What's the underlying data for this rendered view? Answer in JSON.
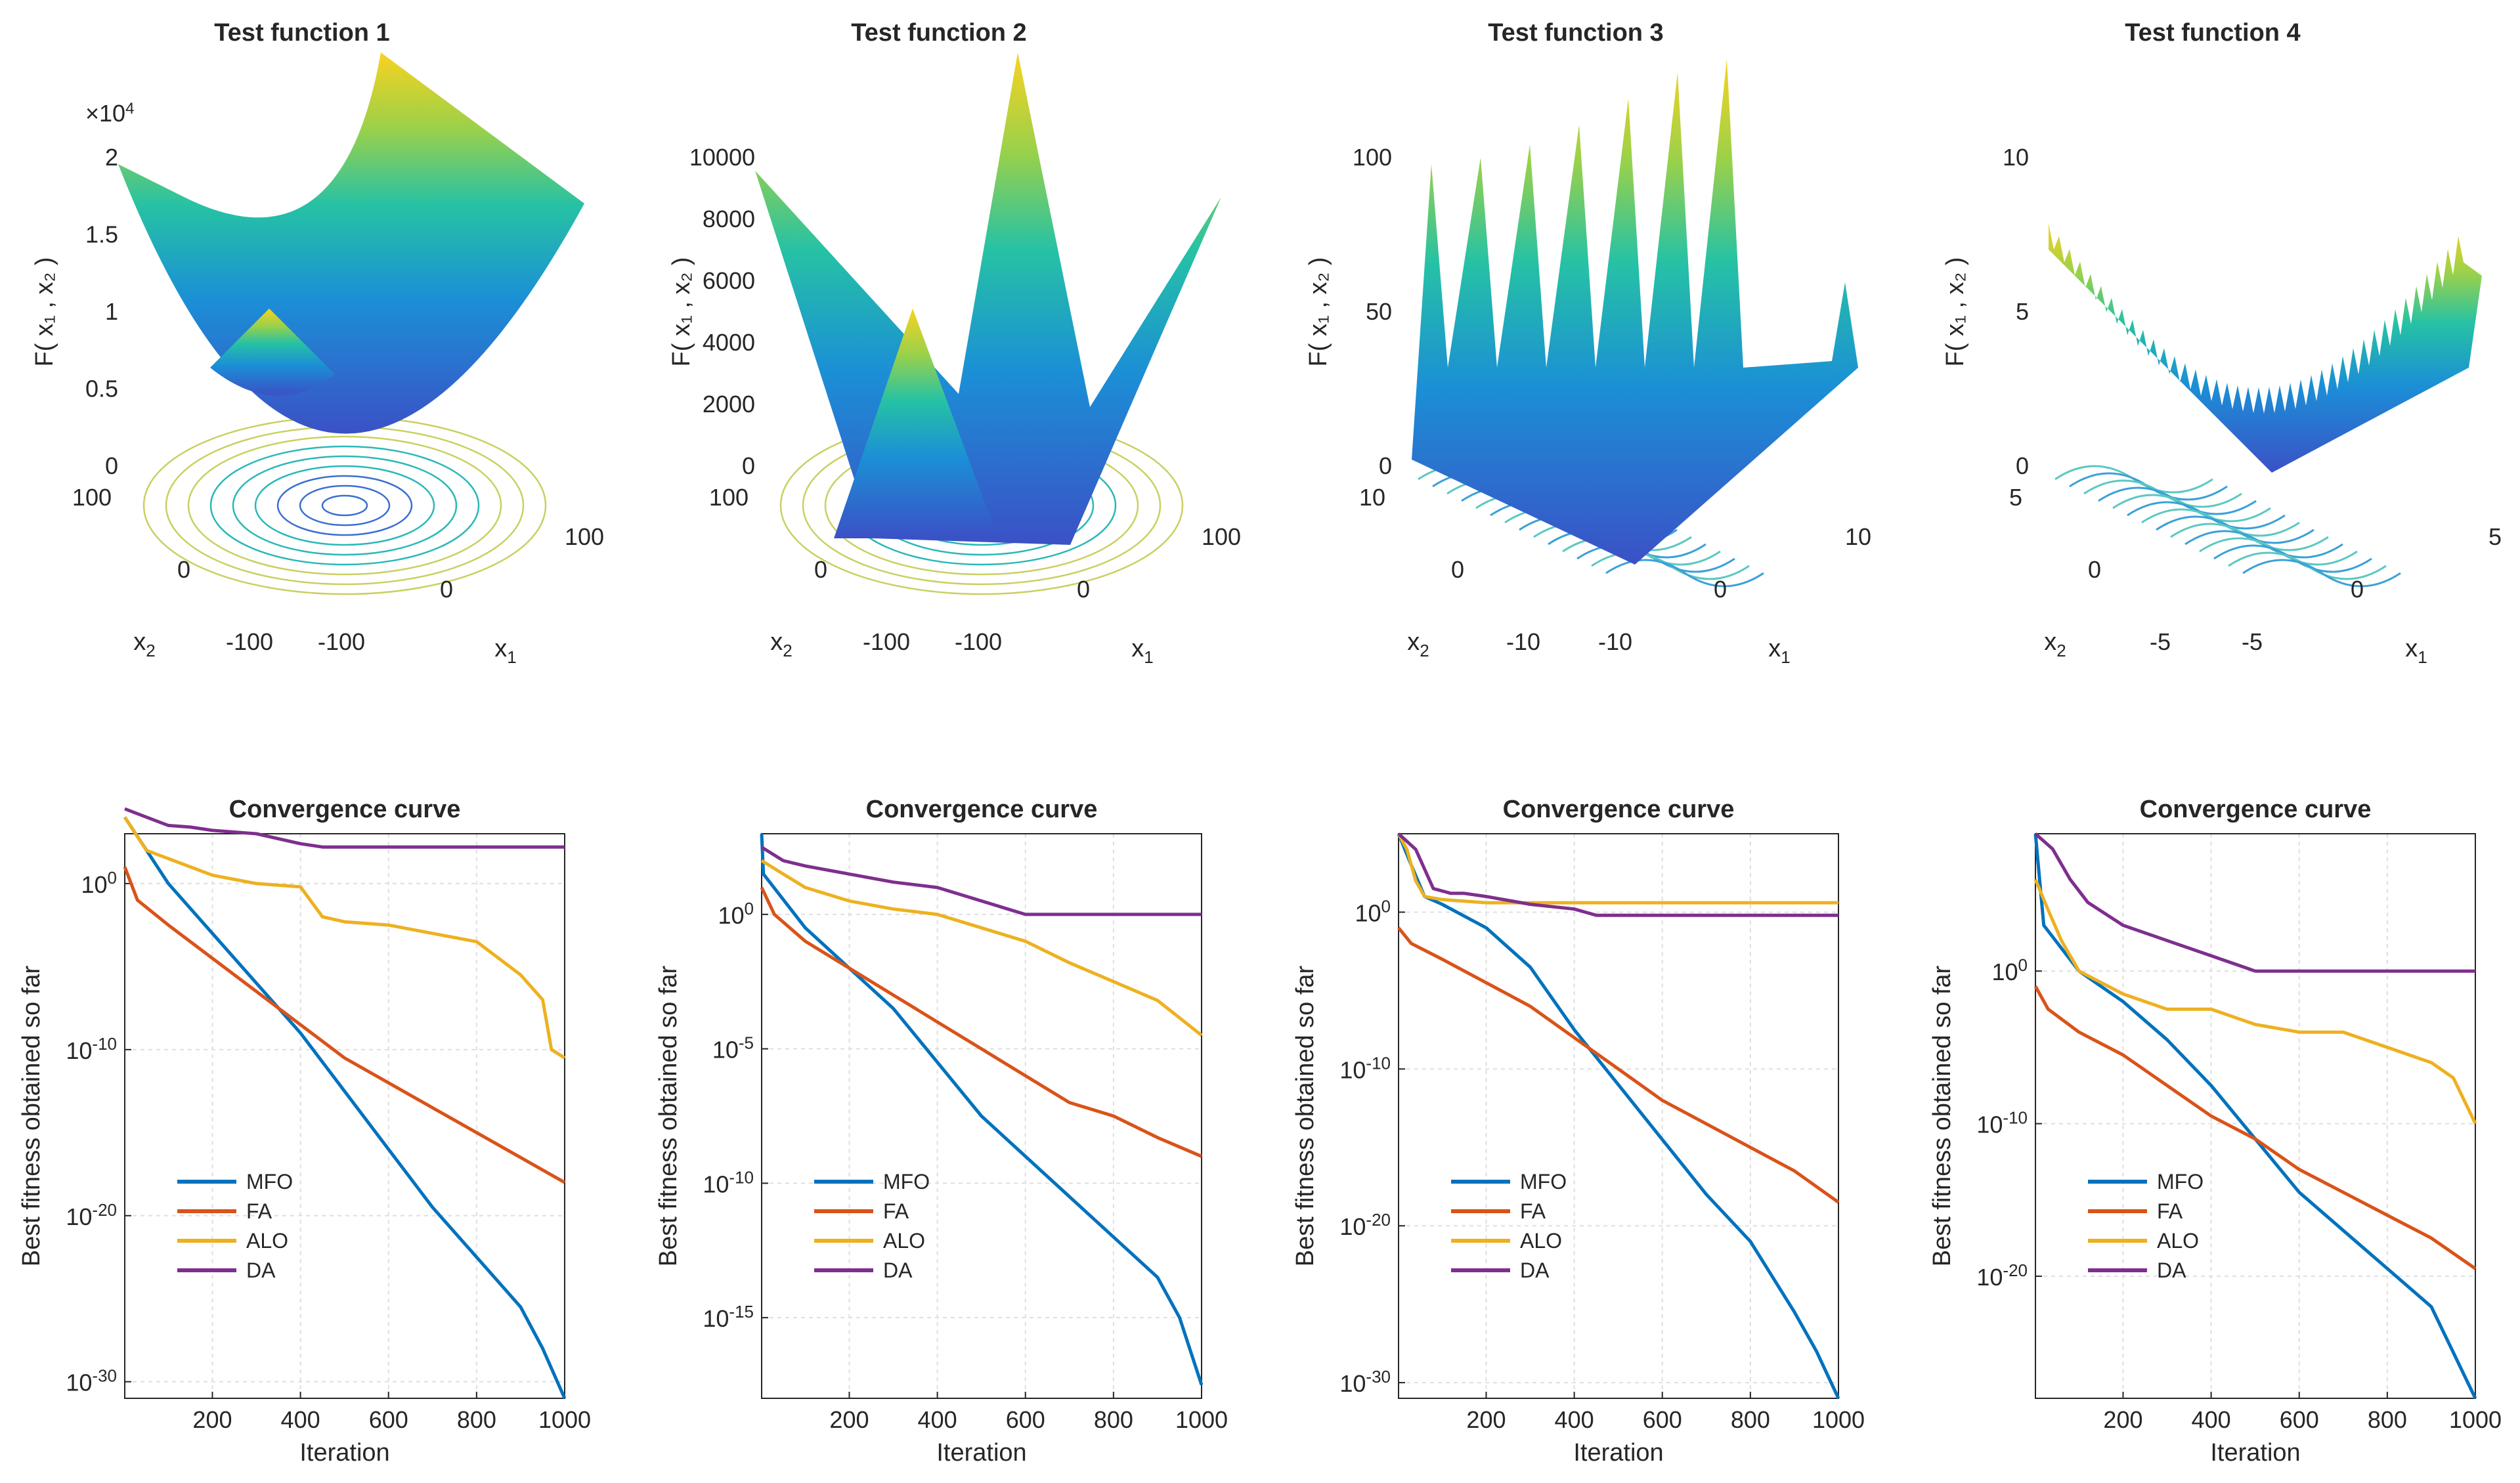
{
  "colors": {
    "mfo": "#0072BD",
    "fa": "#D95319",
    "alo": "#EDB120",
    "da": "#7E2F8E"
  },
  "surfaces": [
    {
      "title": "Test function 1",
      "zlabel": "F( x 1 , x 2 )",
      "xlabel": "x 1",
      "ylabel": "x 2",
      "zticks": [
        "0",
        "0.5",
        "1",
        "1.5",
        "2"
      ],
      "zexp": "×10 4",
      "x1ticks": [
        "-100",
        "0",
        "100"
      ],
      "x2ticks": [
        "-100",
        "0",
        "100"
      ],
      "shape": "bowl"
    },
    {
      "title": "Test function 2",
      "zlabel": "F( x 1 , x 2 )",
      "xlabel": "x 1",
      "ylabel": "x 2",
      "zticks": [
        "0",
        "2000",
        "4000",
        "6000",
        "8000",
        "10000"
      ],
      "zexp": "",
      "x1ticks": [
        "-100",
        "0",
        "100"
      ],
      "x2ticks": [
        "-100",
        "0",
        "100"
      ],
      "shape": "pyramid"
    },
    {
      "title": "Test function 3",
      "zlabel": "F( x 1 , x 2 )",
      "xlabel": "x 1",
      "ylabel": "x 2",
      "zticks": [
        "0",
        "50",
        "100"
      ],
      "zexp": "",
      "x1ticks": [
        "-10",
        "0",
        "10"
      ],
      "x2ticks": [
        "-10",
        "0",
        "10"
      ],
      "shape": "rastrigin"
    },
    {
      "title": "Test function 4",
      "zlabel": "F( x 1 , x 2 )",
      "xlabel": "x 1",
      "ylabel": "x 2",
      "zticks": [
        "0",
        "5",
        "10"
      ],
      "zexp": "",
      "x1ticks": [
        "-5",
        "0",
        "5"
      ],
      "x2ticks": [
        "-5",
        "0",
        "5"
      ],
      "shape": "spiky"
    }
  ],
  "chart_data": [
    {
      "type": "line",
      "title": "Convergence curve",
      "xlabel": "Iteration",
      "ylabel": "Best fitness obtained so far",
      "xlim": [
        1,
        1000
      ],
      "xticks": [
        200,
        400,
        600,
        800,
        1000
      ],
      "yscale": "log",
      "ylim_exp": [
        -31,
        3
      ],
      "yticks": [
        {
          "v": 0,
          "label": "10 0"
        },
        {
          "v": -10,
          "label": "10 -10"
        },
        {
          "v": -20,
          "label": "10 -20"
        },
        {
          "v": -30,
          "label": "10 -30"
        }
      ],
      "legend": [
        "MFO",
        "FA",
        "ALO",
        "DA"
      ],
      "legend_loc": "lower-left",
      "series": [
        {
          "name": "MFO",
          "x": [
            1,
            100,
            200,
            300,
            400,
            500,
            600,
            700,
            800,
            900,
            950,
            1000
          ],
          "log10y": [
            4,
            0,
            -3,
            -6,
            -9,
            -12.5,
            -16,
            -19.5,
            -22.5,
            -25.5,
            -28,
            -31
          ]
        },
        {
          "name": "FA",
          "x": [
            1,
            30,
            100,
            200,
            300,
            400,
            500,
            600,
            700,
            800,
            900,
            1000
          ],
          "log10y": [
            1,
            -1,
            -2.5,
            -4.5,
            -6.5,
            -8.5,
            -10.5,
            -12,
            -13.5,
            -15,
            -16.5,
            -18
          ]
        },
        {
          "name": "ALO",
          "x": [
            1,
            50,
            100,
            200,
            300,
            400,
            450,
            500,
            600,
            700,
            800,
            900,
            950,
            970,
            1000
          ],
          "log10y": [
            4,
            2,
            1.5,
            0.5,
            0,
            -0.2,
            -2,
            -2.3,
            -2.5,
            -3,
            -3.5,
            -5.5,
            -7,
            -10,
            -10.5
          ]
        },
        {
          "name": "DA",
          "x": [
            1,
            50,
            100,
            150,
            200,
            300,
            400,
            450,
            1000
          ],
          "log10y": [
            4.5,
            4,
            3.5,
            3.4,
            3.2,
            3,
            2.4,
            2.2,
            2.2
          ]
        }
      ]
    },
    {
      "type": "line",
      "title": "Convergence curve",
      "xlabel": "Iteration",
      "ylabel": "Best fitness obtained so far",
      "xlim": [
        1,
        1000
      ],
      "xticks": [
        200,
        400,
        600,
        800,
        1000
      ],
      "yscale": "log",
      "ylim_exp": [
        -18,
        3
      ],
      "yticks": [
        {
          "v": 0,
          "label": "10 0"
        },
        {
          "v": -5,
          "label": "10 -5"
        },
        {
          "v": -10,
          "label": "10 -10"
        },
        {
          "v": -15,
          "label": "10 -15"
        }
      ],
      "legend": [
        "MFO",
        "FA",
        "ALO",
        "DA"
      ],
      "legend_loc": "lower-left",
      "series": [
        {
          "name": "MFO",
          "x": [
            1,
            5,
            100,
            200,
            300,
            400,
            500,
            600,
            700,
            800,
            900,
            950,
            1000
          ],
          "log10y": [
            3,
            1.5,
            -0.5,
            -2,
            -3.5,
            -5.5,
            -7.5,
            -9,
            -10.5,
            -12,
            -13.5,
            -15,
            -17.5
          ]
        },
        {
          "name": "FA",
          "x": [
            1,
            30,
            100,
            200,
            300,
            400,
            500,
            600,
            700,
            800,
            900,
            1000
          ],
          "log10y": [
            1,
            0,
            -1,
            -2,
            -3,
            -4,
            -5,
            -6,
            -7,
            -7.5,
            -8.3,
            -9
          ]
        },
        {
          "name": "ALO",
          "x": [
            1,
            50,
            100,
            200,
            300,
            400,
            500,
            600,
            700,
            800,
            900,
            1000
          ],
          "log10y": [
            2,
            1.5,
            1,
            0.5,
            0.2,
            0,
            -0.5,
            -1,
            -1.8,
            -2.5,
            -3.2,
            -4.5
          ]
        },
        {
          "name": "DA",
          "x": [
            1,
            50,
            100,
            200,
            300,
            400,
            500,
            600,
            1000
          ],
          "log10y": [
            2.5,
            2,
            1.8,
            1.5,
            1.2,
            1,
            0.5,
            0,
            0
          ]
        }
      ]
    },
    {
      "type": "line",
      "title": "Convergence curve",
      "xlabel": "Iteration",
      "ylabel": "Best fitness obtained so far",
      "xlim": [
        1,
        1000
      ],
      "xticks": [
        200,
        400,
        600,
        800,
        1000
      ],
      "yscale": "log",
      "ylim_exp": [
        -31,
        5
      ],
      "yticks": [
        {
          "v": 0,
          "label": "10 0"
        },
        {
          "v": -10,
          "label": "10 -10"
        },
        {
          "v": -20,
          "label": "10 -20"
        },
        {
          "v": -30,
          "label": "10 -30"
        }
      ],
      "legend": [
        "MFO",
        "FA",
        "ALO",
        "DA"
      ],
      "legend_loc": "lower-left",
      "series": [
        {
          "name": "MFO",
          "x": [
            1,
            30,
            60,
            100,
            200,
            300,
            400,
            500,
            600,
            700,
            800,
            900,
            950,
            1000
          ],
          "log10y": [
            5,
            3,
            1,
            0.5,
            -1,
            -3.5,
            -7.5,
            -11,
            -14.5,
            -18,
            -21,
            -25.5,
            -28,
            -31
          ]
        },
        {
          "name": "FA",
          "x": [
            1,
            30,
            100,
            200,
            300,
            400,
            500,
            600,
            700,
            800,
            900,
            1000
          ],
          "log10y": [
            -1,
            -2,
            -3,
            -4.5,
            -6,
            -8,
            -10,
            -12,
            -13.5,
            -15,
            -16.5,
            -18.5
          ]
        },
        {
          "name": "ALO",
          "x": [
            1,
            20,
            40,
            60,
            100,
            200,
            1000
          ],
          "log10y": [
            5,
            4,
            2,
            1,
            0.8,
            0.6,
            0.6
          ]
        },
        {
          "name": "DA",
          "x": [
            1,
            40,
            80,
            120,
            150,
            200,
            300,
            400,
            450,
            1000
          ],
          "log10y": [
            5,
            4,
            1.5,
            1.2,
            1.2,
            1,
            0.5,
            0.2,
            -0.2,
            -0.2
          ]
        }
      ]
    },
    {
      "type": "line",
      "title": "Convergence curve",
      "xlabel": "Iteration",
      "ylabel": "Best fitness obtained so far",
      "xlim": [
        1,
        1000
      ],
      "xticks": [
        200,
        400,
        600,
        800,
        1000
      ],
      "yscale": "log",
      "ylim_exp": [
        -28,
        9
      ],
      "yticks": [
        {
          "v": 0,
          "label": "10 0"
        },
        {
          "v": -10,
          "label": "10 -10"
        },
        {
          "v": -20,
          "label": "10 -20"
        }
      ],
      "legend": [
        "MFO",
        "FA",
        "ALO",
        "DA"
      ],
      "legend_loc": "lower-left",
      "series": [
        {
          "name": "MFO",
          "x": [
            1,
            20,
            100,
            200,
            300,
            400,
            500,
            600,
            700,
            800,
            900,
            950,
            1000
          ],
          "log10y": [
            9,
            3,
            0,
            -2,
            -4.5,
            -7.5,
            -11,
            -14.5,
            -17,
            -19.5,
            -22,
            -25,
            -28
          ]
        },
        {
          "name": "FA",
          "x": [
            1,
            30,
            100,
            200,
            300,
            400,
            500,
            600,
            700,
            800,
            900,
            1000
          ],
          "log10y": [
            -1,
            -2.5,
            -4,
            -5.5,
            -7.5,
            -9.5,
            -11,
            -13,
            -14.5,
            -16,
            -17.5,
            -19.5
          ]
        },
        {
          "name": "ALO",
          "x": [
            1,
            30,
            60,
            100,
            200,
            300,
            400,
            500,
            600,
            700,
            800,
            900,
            950,
            1000
          ],
          "log10y": [
            6,
            4,
            2,
            0,
            -1.5,
            -2.5,
            -2.5,
            -3.5,
            -4,
            -4,
            -5,
            -6,
            -7,
            -10
          ]
        },
        {
          "name": "DA",
          "x": [
            1,
            40,
            80,
            120,
            200,
            300,
            400,
            500,
            1000
          ],
          "log10y": [
            9,
            8,
            6,
            4.5,
            3,
            2,
            1,
            0,
            0
          ]
        }
      ]
    }
  ]
}
